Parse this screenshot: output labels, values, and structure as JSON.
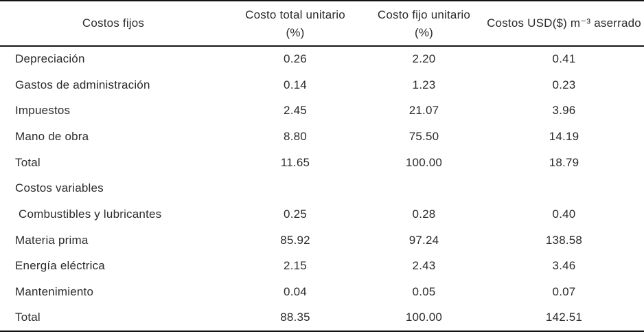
{
  "table": {
    "columns": [
      {
        "label": "Costos fijos",
        "sublabel": ""
      },
      {
        "label": "Costo total unitario",
        "sublabel": "(%)"
      },
      {
        "label": "Costo fijo unitario",
        "sublabel": "(%)"
      },
      {
        "label": "Costos USD($) m⁻³ aserrado",
        "sublabel": ""
      }
    ],
    "rows": [
      {
        "label": "Depreciación",
        "kind": "data",
        "values": [
          "0.26",
          "2.20",
          "0.41"
        ]
      },
      {
        "label": "Gastos de administración",
        "kind": "data",
        "values": [
          "0.14",
          "1.23",
          "0.23"
        ]
      },
      {
        "label": "Impuestos",
        "kind": "data",
        "values": [
          "2.45",
          "21.07",
          "3.96"
        ]
      },
      {
        "label": "Mano de obra",
        "kind": "data",
        "values": [
          "8.80",
          "75.50",
          "14.19"
        ]
      },
      {
        "label": "Total",
        "kind": "total",
        "values": [
          "11.65",
          "100.00",
          "18.79"
        ]
      },
      {
        "label": "Costos variables",
        "kind": "section",
        "values": [
          "",
          "",
          ""
        ]
      },
      {
        "label": "Combustibles y lubricantes",
        "kind": "data",
        "values": [
          "0.25",
          "0.28",
          "0.40"
        ]
      },
      {
        "label": "Materia prima",
        "kind": "data",
        "values": [
          "85.92",
          "97.24",
          "138.58"
        ]
      },
      {
        "label": "Energía eléctrica",
        "kind": "data",
        "values": [
          "2.15",
          "2.43",
          "3.46"
        ]
      },
      {
        "label": "Mantenimiento",
        "kind": "data",
        "values": [
          "0.04",
          "0.05",
          "0.07"
        ]
      },
      {
        "label": "Total",
        "kind": "total",
        "values": [
          "88.35",
          "100.00",
          "142.51"
        ]
      }
    ]
  }
}
